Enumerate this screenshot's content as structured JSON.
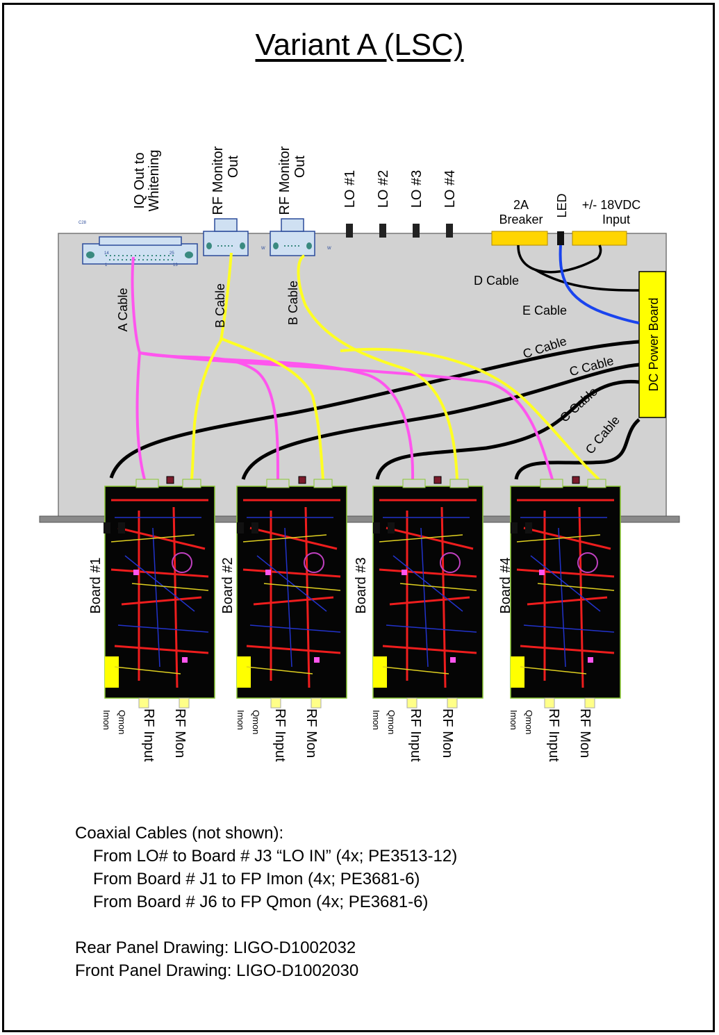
{
  "title": "Variant A (LSC)",
  "top_labels": {
    "iq_out": [
      "IQ Out to",
      "Whitening"
    ],
    "rf_monitor_1": [
      "RF Monitor",
      "Out"
    ],
    "rf_monitor_2": [
      "RF Monitor",
      "Out"
    ],
    "lo": [
      "LO #1",
      "LO #2",
      "LO #3",
      "LO #4"
    ],
    "breaker": [
      "2A",
      "Breaker"
    ],
    "led": "LED",
    "power_input": [
      "+/- 18VDC",
      "Input"
    ]
  },
  "connector_codes": {
    "c28": "C28",
    "w1": "W",
    "w2": "W",
    "w3": "W",
    "pin_start": "1",
    "pin_mid": "13",
    "pin_14": "14",
    "pin_25": "25"
  },
  "cable_labels": {
    "a": "A Cable",
    "b1": "B Cable",
    "b2": "B Cable",
    "d": "D Cable",
    "e": "E Cable",
    "c": [
      "C Cable",
      "C Cable",
      "C Cable",
      "C Cable"
    ]
  },
  "dc_power_board": "DC Power Board",
  "boards": [
    "Board #1",
    "Board #2",
    "Board #3",
    "Board #4"
  ],
  "front_connectors": [
    "Imon",
    "Qmon",
    "RF Input",
    "RF Mon"
  ],
  "colors": {
    "chassis": "#d2d2d2",
    "pink_cable": "#ff55ee",
    "yellow_cable": "#ffff22",
    "blue_cable": "#1a44ee",
    "yellow_block": "#ffd500",
    "dc_board": "#ffff00",
    "pcb": "#050505",
    "pcb_red": "#ee1d1d"
  },
  "notes": {
    "heading": "Coaxial Cables (not shown):",
    "lines": [
      "From LO# to Board # J3 “LO IN” (4x; PE3513-12)",
      "From Board # J1 to FP Imon (4x; PE3681-6)",
      "From Board # J6 to FP Qmon (4x; PE3681-6)"
    ],
    "rear": "Rear Panel Drawing: LIGO-D1002032",
    "front": "Front Panel Drawing: LIGO-D1002030"
  }
}
